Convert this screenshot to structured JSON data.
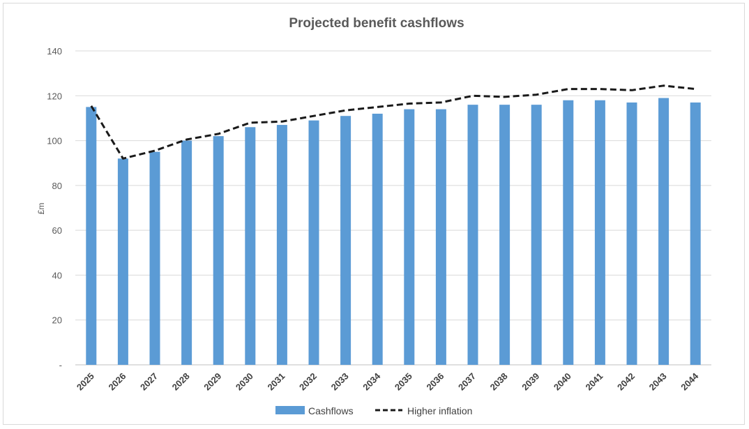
{
  "chart_data": {
    "type": "bar",
    "title": "Projected benefit cashflows",
    "xlabel": "",
    "ylabel": "£m",
    "categories": [
      "2025",
      "2026",
      "2027",
      "2028",
      "2029",
      "2030",
      "2031",
      "2032",
      "2033",
      "2034",
      "2035",
      "2036",
      "2037",
      "2038",
      "2039",
      "2040",
      "2041",
      "2042",
      "2043",
      "2044"
    ],
    "series": [
      {
        "name": "Cashflows",
        "type": "bar",
        "color": "#5b9bd5",
        "values": [
          115,
          92,
          95,
          100,
          102,
          106,
          107,
          109,
          111,
          112,
          114,
          114,
          116,
          116,
          116,
          118,
          118,
          117,
          119,
          117
        ]
      },
      {
        "name": "Higher inflation",
        "type": "line",
        "style": "dashed",
        "color": "#1a1a1a",
        "values": [
          115.5,
          92,
          95.5,
          100.5,
          103,
          108,
          108.5,
          111,
          113.5,
          115,
          116.5,
          117,
          120,
          119.5,
          120.5,
          123,
          123,
          122.5,
          124.5,
          123
        ]
      }
    ],
    "ylim": [
      0,
      140
    ],
    "yticks": [
      "-",
      "20",
      "40",
      "60",
      "80",
      "100",
      "120",
      "140"
    ],
    "ytick_values": [
      0,
      20,
      40,
      60,
      80,
      100,
      120,
      140
    ],
    "grid": true,
    "legend": "bottom"
  }
}
